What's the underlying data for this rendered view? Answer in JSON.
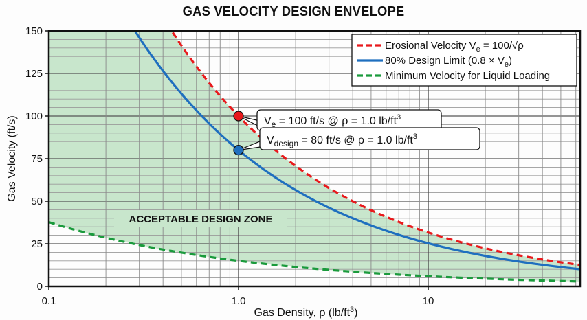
{
  "chart_data": {
    "type": "line",
    "title": "GAS VELOCITY DESIGN ENVELOPE",
    "xlabel": "Gas Density, ρ (lb/ft³)",
    "xlabel_parts": {
      "main": "Gas Density, ρ (lb/ft",
      "sup": "3",
      "end": ")"
    },
    "ylabel": "Gas Velocity (ft/s)",
    "x_scale": "log",
    "xlim": [
      0.1,
      63
    ],
    "ylim": [
      0,
      150
    ],
    "x_ticks": [
      {
        "value": 0.1,
        "label": "0.1"
      },
      {
        "value": 1.0,
        "label": "1.0"
      },
      {
        "value": 10,
        "label": "10"
      }
    ],
    "y_ticks": [
      {
        "value": 0,
        "label": "0"
      },
      {
        "value": 25,
        "label": "25"
      },
      {
        "value": 50,
        "label": "50"
      },
      {
        "value": 75,
        "label": "75"
      },
      {
        "value": 100,
        "label": "100"
      },
      {
        "value": 125,
        "label": "125"
      },
      {
        "value": 150,
        "label": "150"
      }
    ],
    "grid": true,
    "legend_position": "upper right",
    "series": [
      {
        "name": "Erosional Velocity Ve = 100/√ρ",
        "legend_parts": {
          "pre": "Erosional Velocity V",
          "sub": "e",
          "post": " = 100/√ρ"
        },
        "style": "dashed",
        "color": "#e8191c",
        "formula": "100/sqrt(rho)",
        "x": [
          0.444,
          0.5,
          1.0,
          2.0,
          4.0,
          10,
          20,
          40,
          63
        ],
        "y": [
          150,
          141.4,
          100,
          70.7,
          50,
          31.6,
          22.4,
          15.8,
          12.6
        ]
      },
      {
        "name": "80% Design Limit (0.8 × Ve)",
        "legend_parts": {
          "pre": "80% Design Limit (0.8 × V",
          "sub": "e",
          "post": ")"
        },
        "style": "solid",
        "color": "#1f6fbf",
        "formula": "80/sqrt(rho)",
        "x": [
          0.284,
          0.5,
          1.0,
          2.0,
          4.0,
          10,
          20,
          40,
          63
        ],
        "y": [
          150,
          113.1,
          80,
          56.6,
          40,
          25.3,
          17.9,
          12.6,
          10.1
        ]
      },
      {
        "name": "Minimum Velocity for Liquid Loading",
        "legend_parts": {
          "pre": "Minimum Velocity for Liquid Loading",
          "sub": "",
          "post": ""
        },
        "style": "dashed",
        "color": "#1a9a3c",
        "formula": "15/rho^0.4",
        "x": [
          0.1,
          0.2,
          0.5,
          1.0,
          2.0,
          5.0,
          10,
          20,
          63
        ],
        "y": [
          37.7,
          28.6,
          19.8,
          15,
          11.4,
          7.9,
          6.0,
          4.5,
          2.9
        ]
      }
    ],
    "annotations": [
      {
        "text": "Ve = 100 ft/s @ ρ = 1.0 lb/ft³",
        "parts": {
          "pre": "V",
          "sub": "e",
          "post": " = 100 ft/s @ ρ = 1.0 lb/ft",
          "sup": "3"
        },
        "point": {
          "x": 1.0,
          "y": 100
        },
        "marker_color": "#e8191c"
      },
      {
        "text": "Vdesign = 80 ft/s @ ρ = 1.0 lb/ft³",
        "parts": {
          "pre": "V",
          "sub": "design",
          "post": " = 80 ft/s @ ρ = 1.0 lb/ft",
          "sup": "3"
        },
        "point": {
          "x": 1.0,
          "y": 80
        },
        "marker_color": "#1f6fbf"
      },
      {
        "text": "ACCEPTABLE DESIGN ZONE",
        "region": "between minimum velocity and erosional velocity"
      }
    ],
    "fill_color": "#c8e6cc"
  }
}
